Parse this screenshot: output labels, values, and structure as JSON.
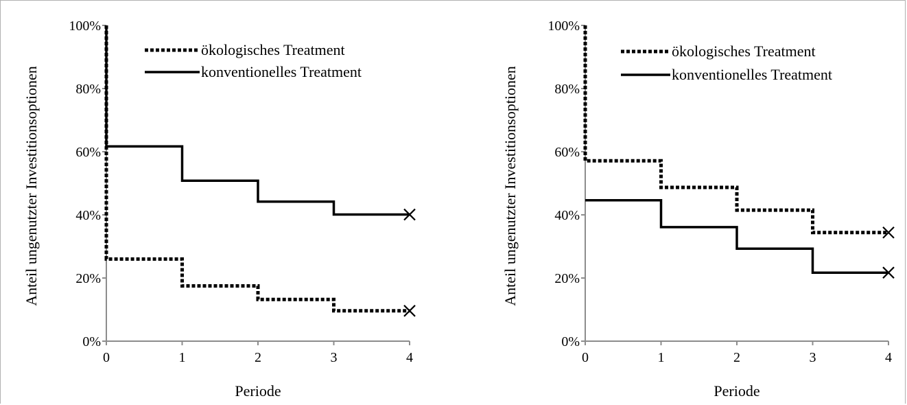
{
  "chart_data": [
    {
      "type": "line",
      "step": true,
      "title": "",
      "xlabel": "Periode",
      "ylabel": "Anteil ungenutzter Investitionsoptionen",
      "x_ticks": [
        "0",
        "1",
        "2",
        "3",
        "4"
      ],
      "y_ticks": [
        "0%",
        "20%",
        "40%",
        "60%",
        "80%",
        "100%"
      ],
      "xlim": [
        0,
        4
      ],
      "ylim": [
        0,
        100
      ],
      "legend_position": "top-right",
      "grid": false,
      "series": [
        {
          "name": "ökologisches Treatment",
          "style": "dotted",
          "points": [
            [
              0,
              100
            ],
            [
              0,
              26
            ],
            [
              1,
              26
            ],
            [
              1,
              17.5
            ],
            [
              2,
              17.5
            ],
            [
              2,
              13.2
            ],
            [
              3,
              13.2
            ],
            [
              3,
              9.6
            ],
            [
              4,
              9.6
            ]
          ],
          "end_marker": "x"
        },
        {
          "name": "konventionelles Treatment",
          "style": "solid",
          "points": [
            [
              0,
              100
            ],
            [
              0,
              61.7
            ],
            [
              1,
              61.7
            ],
            [
              1,
              50.8
            ],
            [
              2,
              50.8
            ],
            [
              2,
              44.2
            ],
            [
              3,
              44.2
            ],
            [
              3,
              40.1
            ],
            [
              4,
              40.1
            ]
          ],
          "end_marker": "x"
        }
      ]
    },
    {
      "type": "line",
      "step": true,
      "title": "",
      "xlabel": "Periode",
      "ylabel": "Anteil ungenutzter Investitionsoptionen",
      "x_ticks": [
        "0",
        "1",
        "2",
        "3",
        "4"
      ],
      "y_ticks": [
        "0%",
        "20%",
        "40%",
        "60%",
        "80%",
        "100%"
      ],
      "xlim": [
        0,
        4
      ],
      "ylim": [
        0,
        100
      ],
      "legend_position": "top-right",
      "grid": false,
      "series": [
        {
          "name": "ökologisches Treatment",
          "style": "dotted",
          "points": [
            [
              0,
              100
            ],
            [
              0,
              57.1
            ],
            [
              1,
              57.1
            ],
            [
              1,
              48.7
            ],
            [
              2,
              48.7
            ],
            [
              2,
              41.5
            ],
            [
              3,
              41.5
            ],
            [
              3,
              34.4
            ],
            [
              4,
              34.4
            ]
          ],
          "end_marker": "x"
        },
        {
          "name": "konventionelles Treatment",
          "style": "solid",
          "points": [
            [
              0,
              44.6
            ],
            [
              1,
              44.6
            ],
            [
              1,
              36.1
            ],
            [
              2,
              36.1
            ],
            [
              2,
              29.3
            ],
            [
              3,
              29.3
            ],
            [
              3,
              21.7
            ],
            [
              4,
              21.7
            ]
          ],
          "end_marker": "x"
        }
      ]
    }
  ]
}
